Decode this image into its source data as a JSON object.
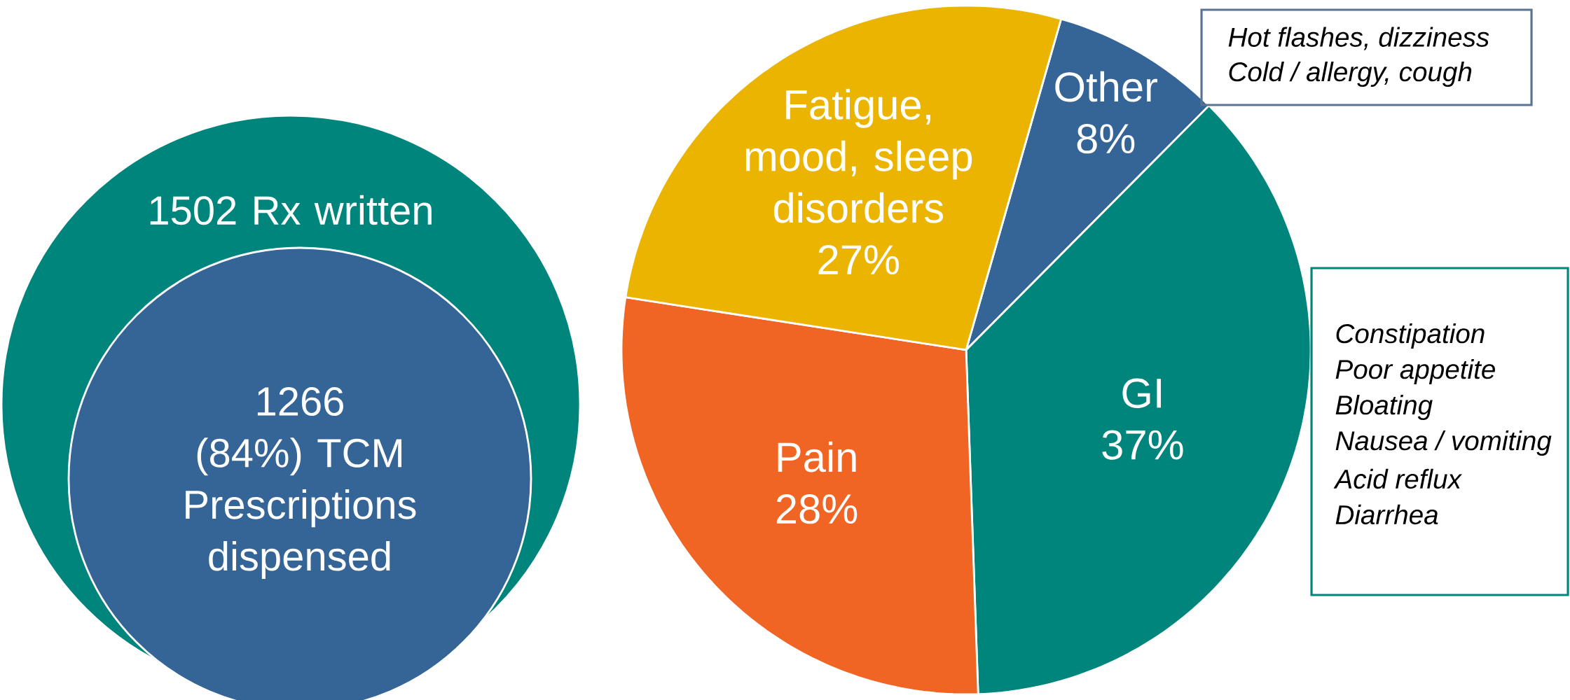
{
  "chart_data": [
    {
      "type": "other",
      "categories": [
        "1502 Rx written",
        "1266 (84%) TCM Prescriptions dispensed"
      ],
      "colors": [
        "#00857c",
        "#356597"
      ]
    },
    {
      "type": "pie",
      "categories": [
        "Other",
        "GI",
        "Pain",
        "Fatigue, mood, sleep disorders"
      ],
      "values": [
        8,
        37,
        28,
        27
      ],
      "value_labels": [
        "8%",
        "37%",
        "28%",
        "27%"
      ],
      "colors": [
        "#356597",
        "#00857c",
        "#f06424",
        "#ebb400"
      ],
      "annotations": [
        "Hot flashes, dizziness",
        "Cold / allergy, cough",
        "Constipation",
        "Poor appetite",
        "Bloating",
        "Nausea / vomiting",
        "Acid reflux",
        "Diarrhea"
      ]
    }
  ]
}
